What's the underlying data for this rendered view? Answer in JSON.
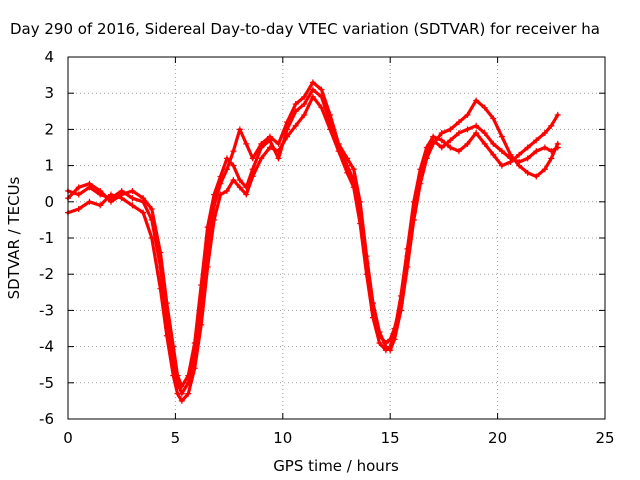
{
  "chart_data": {
    "type": "scatter",
    "title": "Day 290 of 2016, Sidereal Day-to-day VTEC variation (SDTVAR) for receiver ha",
    "xlabel": "GPS time / hours",
    "ylabel": "SDTVAR / TECUs",
    "xlim": [
      0,
      25
    ],
    "ylim": [
      -6,
      4
    ],
    "xticks": [
      "0",
      "5",
      "10",
      "15",
      "20",
      "25"
    ],
    "yticks": [
      "-6",
      "-5",
      "-4",
      "-3",
      "-2",
      "-1",
      "0",
      "1",
      "2",
      "3",
      "4"
    ],
    "grid": true,
    "marker": "+",
    "color": "#ff0000",
    "series": [
      {
        "x": [
          0,
          0.5,
          1.0,
          1.5,
          2.0,
          2.5,
          3.0,
          3.5,
          3.9,
          4.3,
          4.6,
          4.9,
          5.1,
          5.3,
          5.6,
          5.9,
          6.2,
          6.5,
          6.8,
          7.1,
          7.4,
          7.7,
          8.0,
          8.3,
          8.6,
          9.0,
          9.4,
          9.8,
          10.2,
          10.6,
          11.0,
          11.4,
          11.8,
          12.2,
          12.6,
          13.0,
          13.3,
          13.6,
          13.9,
          14.2,
          14.5,
          14.8,
          15.0,
          15.2,
          15.5,
          15.8,
          16.1,
          16.4,
          16.7,
          17.0,
          17.4,
          17.8,
          18.2,
          18.6,
          19.0,
          19.4,
          19.8,
          20.2,
          20.6,
          21.0,
          21.4,
          21.8,
          22.2,
          22.5,
          22.8
        ],
        "y": [
          0.3,
          0.2,
          0.4,
          0.2,
          0.1,
          0.3,
          0.1,
          0.0,
          -0.5,
          -1.8,
          -3.2,
          -4.4,
          -5.0,
          -5.3,
          -5.0,
          -4.2,
          -2.8,
          -1.2,
          -0.1,
          0.5,
          0.9,
          1.4,
          2.0,
          1.6,
          1.2,
          1.6,
          1.8,
          1.6,
          2.2,
          2.7,
          2.9,
          3.3,
          3.1,
          2.4,
          1.6,
          1.2,
          0.9,
          0.0,
          -1.5,
          -2.8,
          -3.6,
          -4.0,
          -4.1,
          -3.8,
          -3.0,
          -1.8,
          -0.5,
          0.5,
          1.2,
          1.6,
          1.9,
          2.0,
          2.2,
          2.4,
          2.8,
          2.6,
          2.3,
          1.8,
          1.3,
          1.0,
          0.8,
          0.7,
          0.9,
          1.2,
          1.6
        ]
      },
      {
        "x": [
          0,
          0.5,
          1.0,
          1.5,
          2.0,
          2.5,
          3.0,
          3.5,
          3.9,
          4.3,
          4.6,
          4.9,
          5.1,
          5.3,
          5.6,
          5.9,
          6.2,
          6.5,
          6.8,
          7.1,
          7.4,
          7.7,
          8.0,
          8.3,
          8.6,
          9.0,
          9.4,
          9.8,
          10.2,
          10.6,
          11.0,
          11.4,
          11.8,
          12.2,
          12.6,
          13.0,
          13.3,
          13.6,
          13.9,
          14.2,
          14.5,
          14.8,
          15.0,
          15.2,
          15.5,
          15.8,
          16.1,
          16.4,
          16.7,
          17.0,
          17.4,
          17.8,
          18.2,
          18.6,
          19.0,
          19.4,
          19.8,
          20.2,
          20.6,
          21.0,
          21.4,
          21.8,
          22.2,
          22.5,
          22.8
        ],
        "y": [
          -0.3,
          -0.2,
          0.0,
          -0.1,
          0.2,
          0.1,
          -0.1,
          -0.3,
          -1.0,
          -2.4,
          -3.7,
          -4.8,
          -5.3,
          -5.5,
          -5.3,
          -4.6,
          -3.4,
          -1.8,
          -0.5,
          0.2,
          0.3,
          0.6,
          0.4,
          0.2,
          0.7,
          1.2,
          1.5,
          1.4,
          1.8,
          2.1,
          2.4,
          2.9,
          2.6,
          2.0,
          1.4,
          0.8,
          0.4,
          -0.6,
          -2.0,
          -3.2,
          -3.9,
          -4.1,
          -4.0,
          -3.6,
          -2.6,
          -1.3,
          0.0,
          0.9,
          1.5,
          1.8,
          1.7,
          1.5,
          1.4,
          1.6,
          1.9,
          1.6,
          1.3,
          1.0,
          1.1,
          1.3,
          1.5,
          1.7,
          1.9,
          2.1,
          2.4
        ]
      },
      {
        "x": [
          0,
          0.5,
          1.0,
          1.5,
          2.0,
          2.5,
          3.0,
          3.5,
          3.9,
          4.3,
          4.6,
          4.9,
          5.1,
          5.3,
          5.6,
          5.9,
          6.2,
          6.5,
          6.8,
          7.1,
          7.4,
          7.7,
          8.0,
          8.3,
          8.6,
          9.0,
          9.4,
          9.8,
          10.2,
          10.6,
          11.0,
          11.4,
          11.8,
          12.2,
          12.6,
          13.0,
          13.3,
          13.6,
          13.9,
          14.2,
          14.5,
          14.8,
          15.0,
          15.2,
          15.5,
          15.8,
          16.1,
          16.4,
          16.7,
          17.0,
          17.4,
          17.8,
          18.2,
          18.6,
          19.0,
          19.4,
          19.8,
          20.2,
          20.6,
          21.0,
          21.4,
          21.8,
          22.2,
          22.5,
          22.8
        ],
        "y": [
          0.1,
          0.4,
          0.5,
          0.3,
          0.0,
          0.2,
          0.3,
          0.1,
          -0.2,
          -1.4,
          -2.8,
          -4.0,
          -4.8,
          -5.1,
          -4.8,
          -3.9,
          -2.3,
          -0.7,
          0.2,
          0.7,
          1.2,
          1.0,
          0.6,
          0.4,
          0.9,
          1.5,
          1.7,
          1.2,
          2.0,
          2.5,
          2.7,
          3.1,
          2.9,
          2.2,
          1.5,
          1.0,
          0.6,
          -0.3,
          -1.7,
          -3.0,
          -3.7,
          -3.9,
          -3.8,
          -3.5,
          -2.8,
          -1.5,
          -0.3,
          0.7,
          1.3,
          1.7,
          1.5,
          1.7,
          1.9,
          2.0,
          2.1,
          1.9,
          1.6,
          1.4,
          1.2,
          1.1,
          1.2,
          1.4,
          1.5,
          1.4,
          1.5
        ]
      }
    ]
  }
}
